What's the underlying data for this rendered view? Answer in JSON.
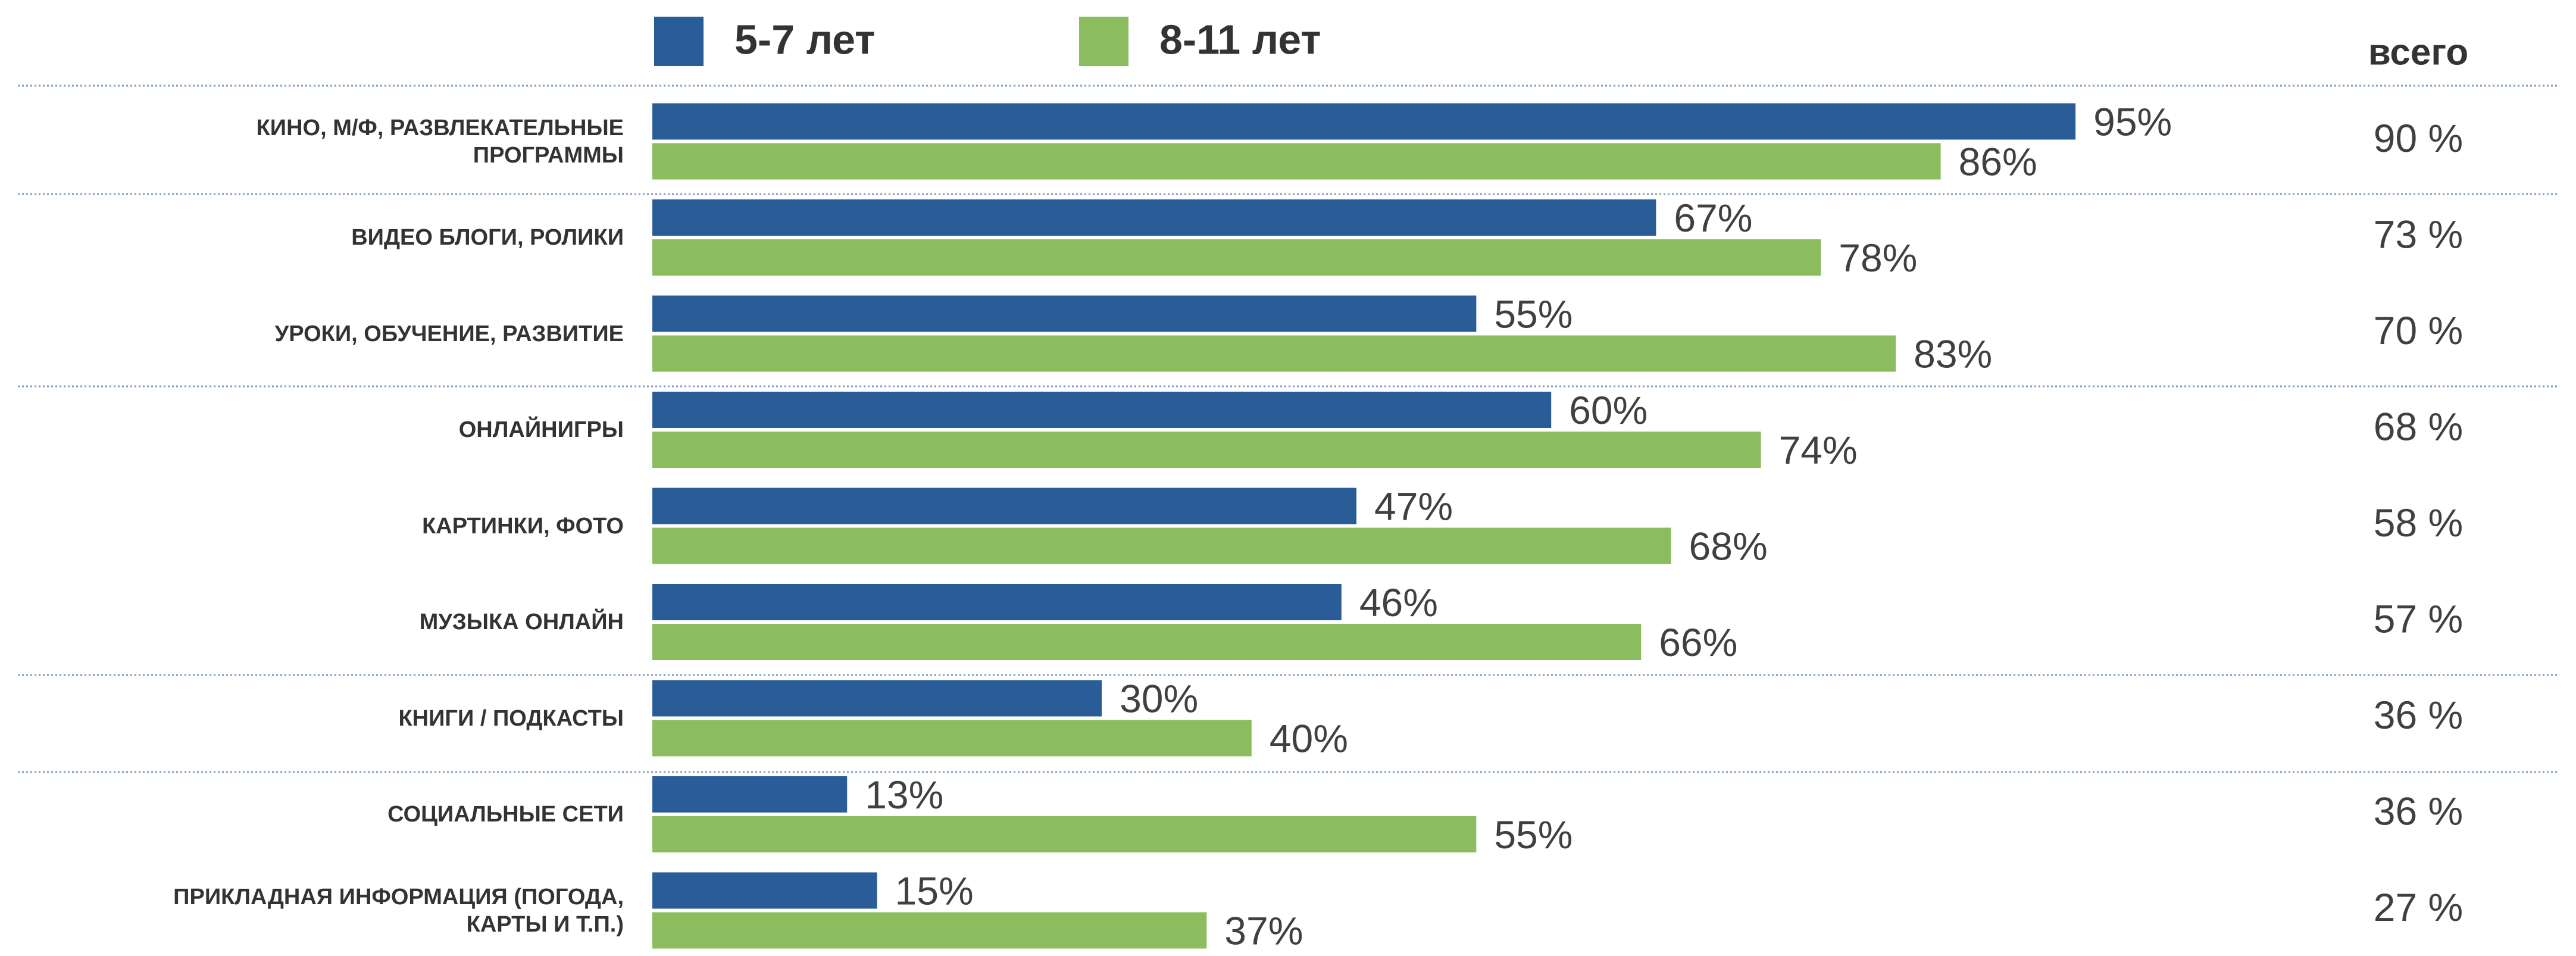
{
  "chart_data": {
    "type": "hbar",
    "categories": [
      "КИНО, М/Ф, РАЗВЛЕКАТЕЛЬНЫЕ ПРОГРАММЫ",
      "ВИДЕО БЛОГИ, РОЛИКИ",
      "УРОКИ, ОБУЧЕНИЕ, РАЗВИТИЕ",
      "ОНЛАЙНИГРЫ",
      "КАРТИНКИ, ФОТО",
      "МУЗЫКА ОНЛАЙН",
      "КНИГИ / ПОДКАСТЫ",
      "СОЦИАЛЬНЫЕ СЕТИ",
      "ПРИКЛАДНАЯ ИНФОРМАЦИЯ (ПОГОДА, КАРТЫ И Т.П.)"
    ],
    "series": [
      {
        "name": "5-7 лет",
        "color": "#2a5d97",
        "values": [
          95,
          67,
          55,
          60,
          47,
          46,
          30,
          13,
          15
        ],
        "value_labels": [
          "95%",
          "67%",
          "55%",
          "60%",
          "47%",
          "46%",
          "30%",
          "13%",
          "15%"
        ]
      },
      {
        "name": "8-11 лет",
        "color": "#8bbd5e",
        "values": [
          86,
          78,
          83,
          74,
          68,
          66,
          40,
          55,
          37
        ],
        "value_labels": [
          "86%",
          "78%",
          "83%",
          "74%",
          "68%",
          "66%",
          "40%",
          "55%",
          "37%"
        ]
      }
    ],
    "totals": {
      "name": "всего",
      "values": [
        90,
        73,
        70,
        68,
        58,
        57,
        36,
        36,
        27
      ],
      "value_labels": [
        "90 %",
        "73 %",
        "70 %",
        "68 %",
        "58 %",
        "57 %",
        "36 %",
        "36 %",
        "27 %"
      ]
    },
    "xlim": [
      0,
      100
    ]
  }
}
